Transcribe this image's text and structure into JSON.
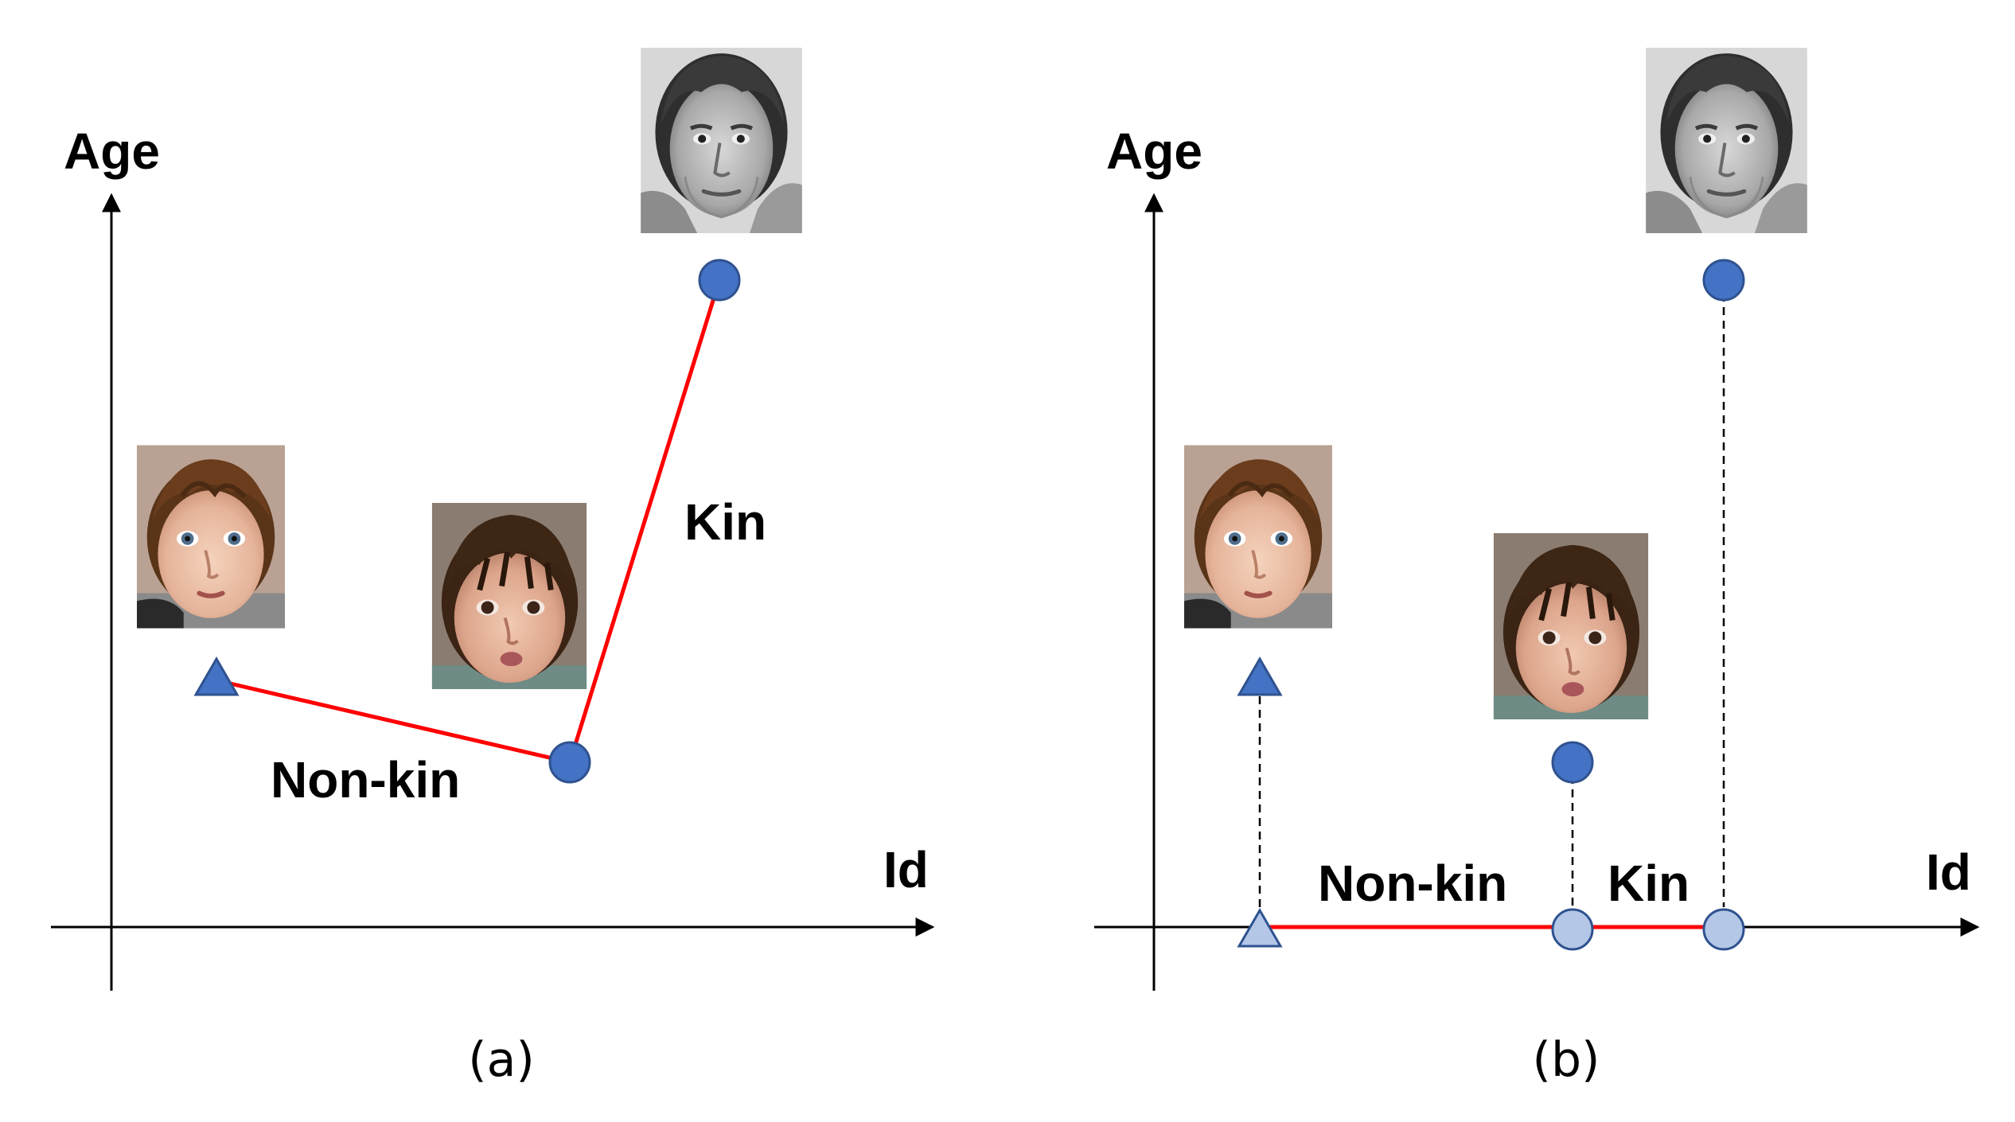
{
  "panels": [
    {
      "caption": "(a)",
      "y_axis_label": "Age",
      "x_axis_label": "Id",
      "relation_labels": {
        "non_kin": "Non-kin",
        "kin": "Kin"
      },
      "faces": [
        {
          "name": "girl-face",
          "depicts": "toddler girl with brown hair, color photo"
        },
        {
          "name": "boy-face",
          "depicts": "toddler boy with dark hair, color photo"
        },
        {
          "name": "man-face",
          "depicts": "adult man, grayscale photo"
        }
      ]
    },
    {
      "caption": "(b)",
      "y_axis_label": "Age",
      "x_axis_label": "Id",
      "relation_labels": {
        "non_kin": "Non-kin",
        "kin": "Kin"
      },
      "faces": [
        {
          "name": "girl-face",
          "depicts": "toddler girl with brown hair, color photo"
        },
        {
          "name": "boy-face",
          "depicts": "toddler boy with dark hair, color photo"
        },
        {
          "name": "man-face",
          "depicts": "adult man, grayscale photo"
        }
      ]
    }
  ],
  "colors": {
    "point_fill": "#4472c4",
    "point_stroke": "#2f528f",
    "projected_fill": "#b4c7e7",
    "relation_line": "#ff0000",
    "axis": "#000000"
  },
  "icons": {
    "girl_marker": "triangle",
    "boy_marker": "circle",
    "man_marker": "circle"
  }
}
